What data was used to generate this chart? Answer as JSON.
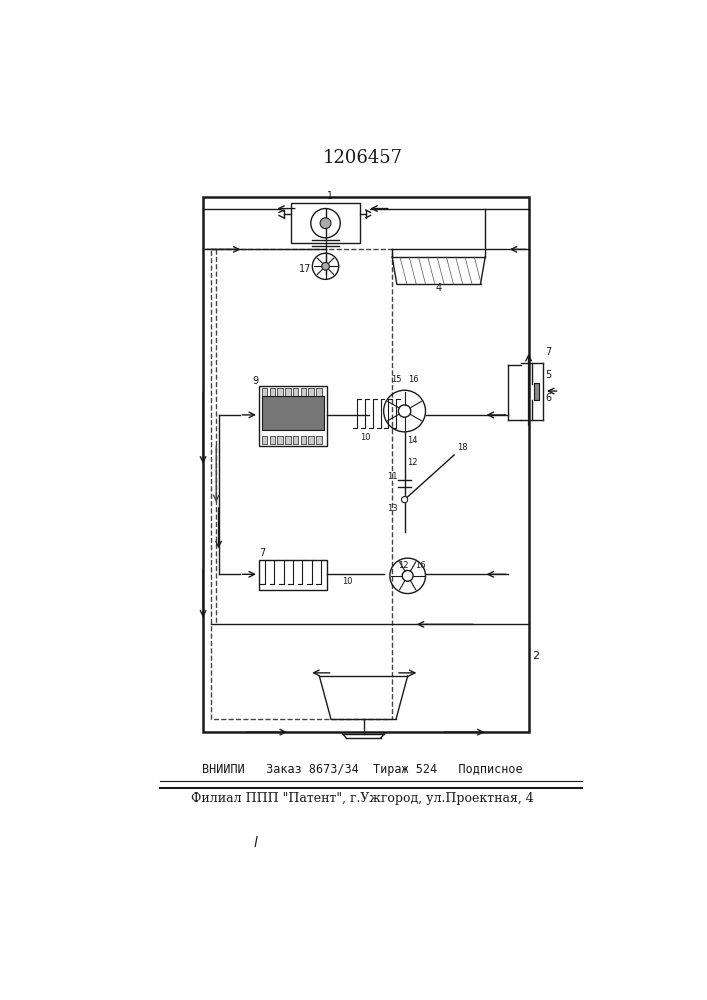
{
  "title": "1206457",
  "title_fontsize": 13,
  "footer_line1": "ВНИИПИ   Заказ 8673/34  Тираж 524   Подписное",
  "footer_line2": "Филиал ППП \"Патент\", г.Ужгород, ул.Проектная, 4",
  "line_color": "#1a1a1a"
}
